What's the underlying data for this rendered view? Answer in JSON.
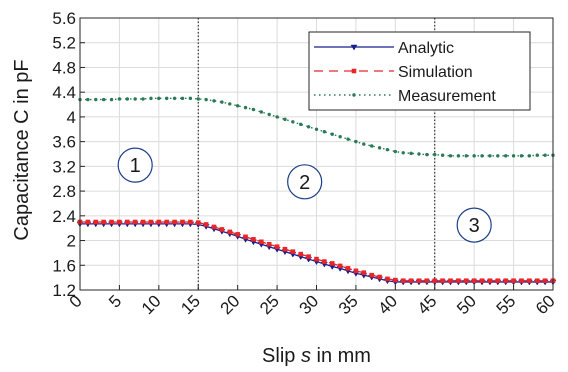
{
  "chart_data": {
    "type": "line",
    "xlabel_prefix": "Slip ",
    "xlabel_var": "s",
    "xlabel_suffix": " in mm",
    "ylabel": "Capacitance C in pF",
    "xlim": [
      0,
      60
    ],
    "ylim": [
      1.2,
      5.6
    ],
    "x_ticks": [
      0,
      5,
      10,
      15,
      20,
      25,
      30,
      35,
      40,
      45,
      50,
      55,
      60
    ],
    "y_ticks": [
      "1.2",
      "1.6",
      "2",
      "2.4",
      "2.8",
      "3.2",
      "3.6",
      "4",
      "4.4",
      "4.8",
      "5.2",
      "5.6"
    ],
    "grid": true,
    "legend_position": "top-right",
    "vlines": [
      15,
      45
    ],
    "regions": [
      {
        "label": "1",
        "x": 7,
        "y": 3.22
      },
      {
        "label": "2",
        "x": 28.5,
        "y": 2.95
      },
      {
        "label": "3",
        "x": 50,
        "y": 2.25
      }
    ],
    "x": [
      0,
      1,
      2,
      3,
      4,
      5,
      6,
      7,
      8,
      9,
      10,
      11,
      12,
      13,
      14,
      15,
      16,
      17,
      18,
      19,
      20,
      21,
      22,
      23,
      24,
      25,
      26,
      27,
      28,
      29,
      30,
      31,
      32,
      33,
      34,
      35,
      36,
      37,
      38,
      39,
      40,
      41,
      42,
      43,
      44,
      45,
      46,
      47,
      48,
      49,
      50,
      51,
      52,
      53,
      54,
      55,
      56,
      57,
      58,
      59,
      60
    ],
    "series": [
      {
        "name": "Analytic",
        "color": "#1b1f8a",
        "marker": "triangle-down",
        "values": [
          2.27,
          2.27,
          2.27,
          2.27,
          2.27,
          2.27,
          2.27,
          2.27,
          2.27,
          2.27,
          2.27,
          2.27,
          2.27,
          2.27,
          2.27,
          2.26,
          2.23,
          2.19,
          2.15,
          2.11,
          2.07,
          2.02,
          1.98,
          1.94,
          1.9,
          1.86,
          1.82,
          1.78,
          1.74,
          1.7,
          1.66,
          1.62,
          1.58,
          1.55,
          1.51,
          1.47,
          1.44,
          1.41,
          1.38,
          1.35,
          1.33,
          1.33,
          1.33,
          1.33,
          1.33,
          1.33,
          1.33,
          1.33,
          1.33,
          1.33,
          1.33,
          1.33,
          1.33,
          1.33,
          1.33,
          1.33,
          1.33,
          1.33,
          1.33,
          1.33,
          1.33
        ]
      },
      {
        "name": "Simulation",
        "color": "#e8262a",
        "marker": "square",
        "values": [
          2.3,
          2.3,
          2.3,
          2.3,
          2.3,
          2.3,
          2.3,
          2.3,
          2.3,
          2.3,
          2.3,
          2.3,
          2.3,
          2.3,
          2.3,
          2.29,
          2.26,
          2.22,
          2.18,
          2.14,
          2.1,
          2.06,
          2.02,
          1.98,
          1.94,
          1.9,
          1.86,
          1.82,
          1.78,
          1.74,
          1.7,
          1.66,
          1.63,
          1.59,
          1.55,
          1.51,
          1.48,
          1.44,
          1.41,
          1.38,
          1.36,
          1.35,
          1.35,
          1.35,
          1.35,
          1.35,
          1.35,
          1.35,
          1.35,
          1.35,
          1.35,
          1.35,
          1.35,
          1.35,
          1.35,
          1.35,
          1.35,
          1.35,
          1.35,
          1.35,
          1.35
        ]
      },
      {
        "name": "Measurement",
        "color": "#2a7a55",
        "marker": "dot",
        "values": [
          4.28,
          4.28,
          4.28,
          4.28,
          4.28,
          4.29,
          4.29,
          4.29,
          4.29,
          4.3,
          4.3,
          4.3,
          4.3,
          4.3,
          4.3,
          4.29,
          4.28,
          4.26,
          4.24,
          4.21,
          4.18,
          4.15,
          4.12,
          4.08,
          4.04,
          4.0,
          3.96,
          3.92,
          3.88,
          3.84,
          3.8,
          3.76,
          3.72,
          3.68,
          3.64,
          3.6,
          3.56,
          3.53,
          3.5,
          3.47,
          3.44,
          3.42,
          3.41,
          3.4,
          3.39,
          3.39,
          3.38,
          3.37,
          3.37,
          3.37,
          3.37,
          3.37,
          3.37,
          3.37,
          3.37,
          3.37,
          3.37,
          3.37,
          3.38,
          3.38,
          3.38
        ]
      }
    ]
  }
}
